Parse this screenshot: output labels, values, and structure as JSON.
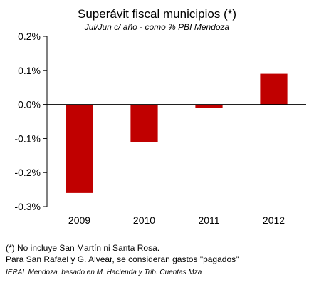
{
  "chart_data": {
    "type": "bar",
    "title": "Superávit fiscal municipios (*)",
    "subtitle": "Jul/Jun c/ año - como % PBI Mendoza",
    "categories": [
      "2009",
      "2010",
      "2011",
      "2012"
    ],
    "values": [
      -0.26,
      -0.11,
      -0.01,
      0.09
    ],
    "ylim": [
      -0.3,
      0.2
    ],
    "yticks": [
      0.2,
      0.1,
      0.0,
      -0.1,
      -0.2,
      -0.3
    ],
    "ytick_labels": [
      "0.2%",
      "0.1%",
      "0.0%",
      "-0.1%",
      "-0.2%",
      "-0.3%"
    ],
    "bar_color": "#c00000",
    "grid": false,
    "legend": "none"
  },
  "notes": {
    "line1": "(*) No incluye San Martín ni Santa Rosa.",
    "line2": "Para San Rafael y G. Alvear, se consideran gastos \"pagados\"",
    "source": "IERAL Mendoza, basado en M. Hacienda y Trib. Cuentas Mza"
  }
}
